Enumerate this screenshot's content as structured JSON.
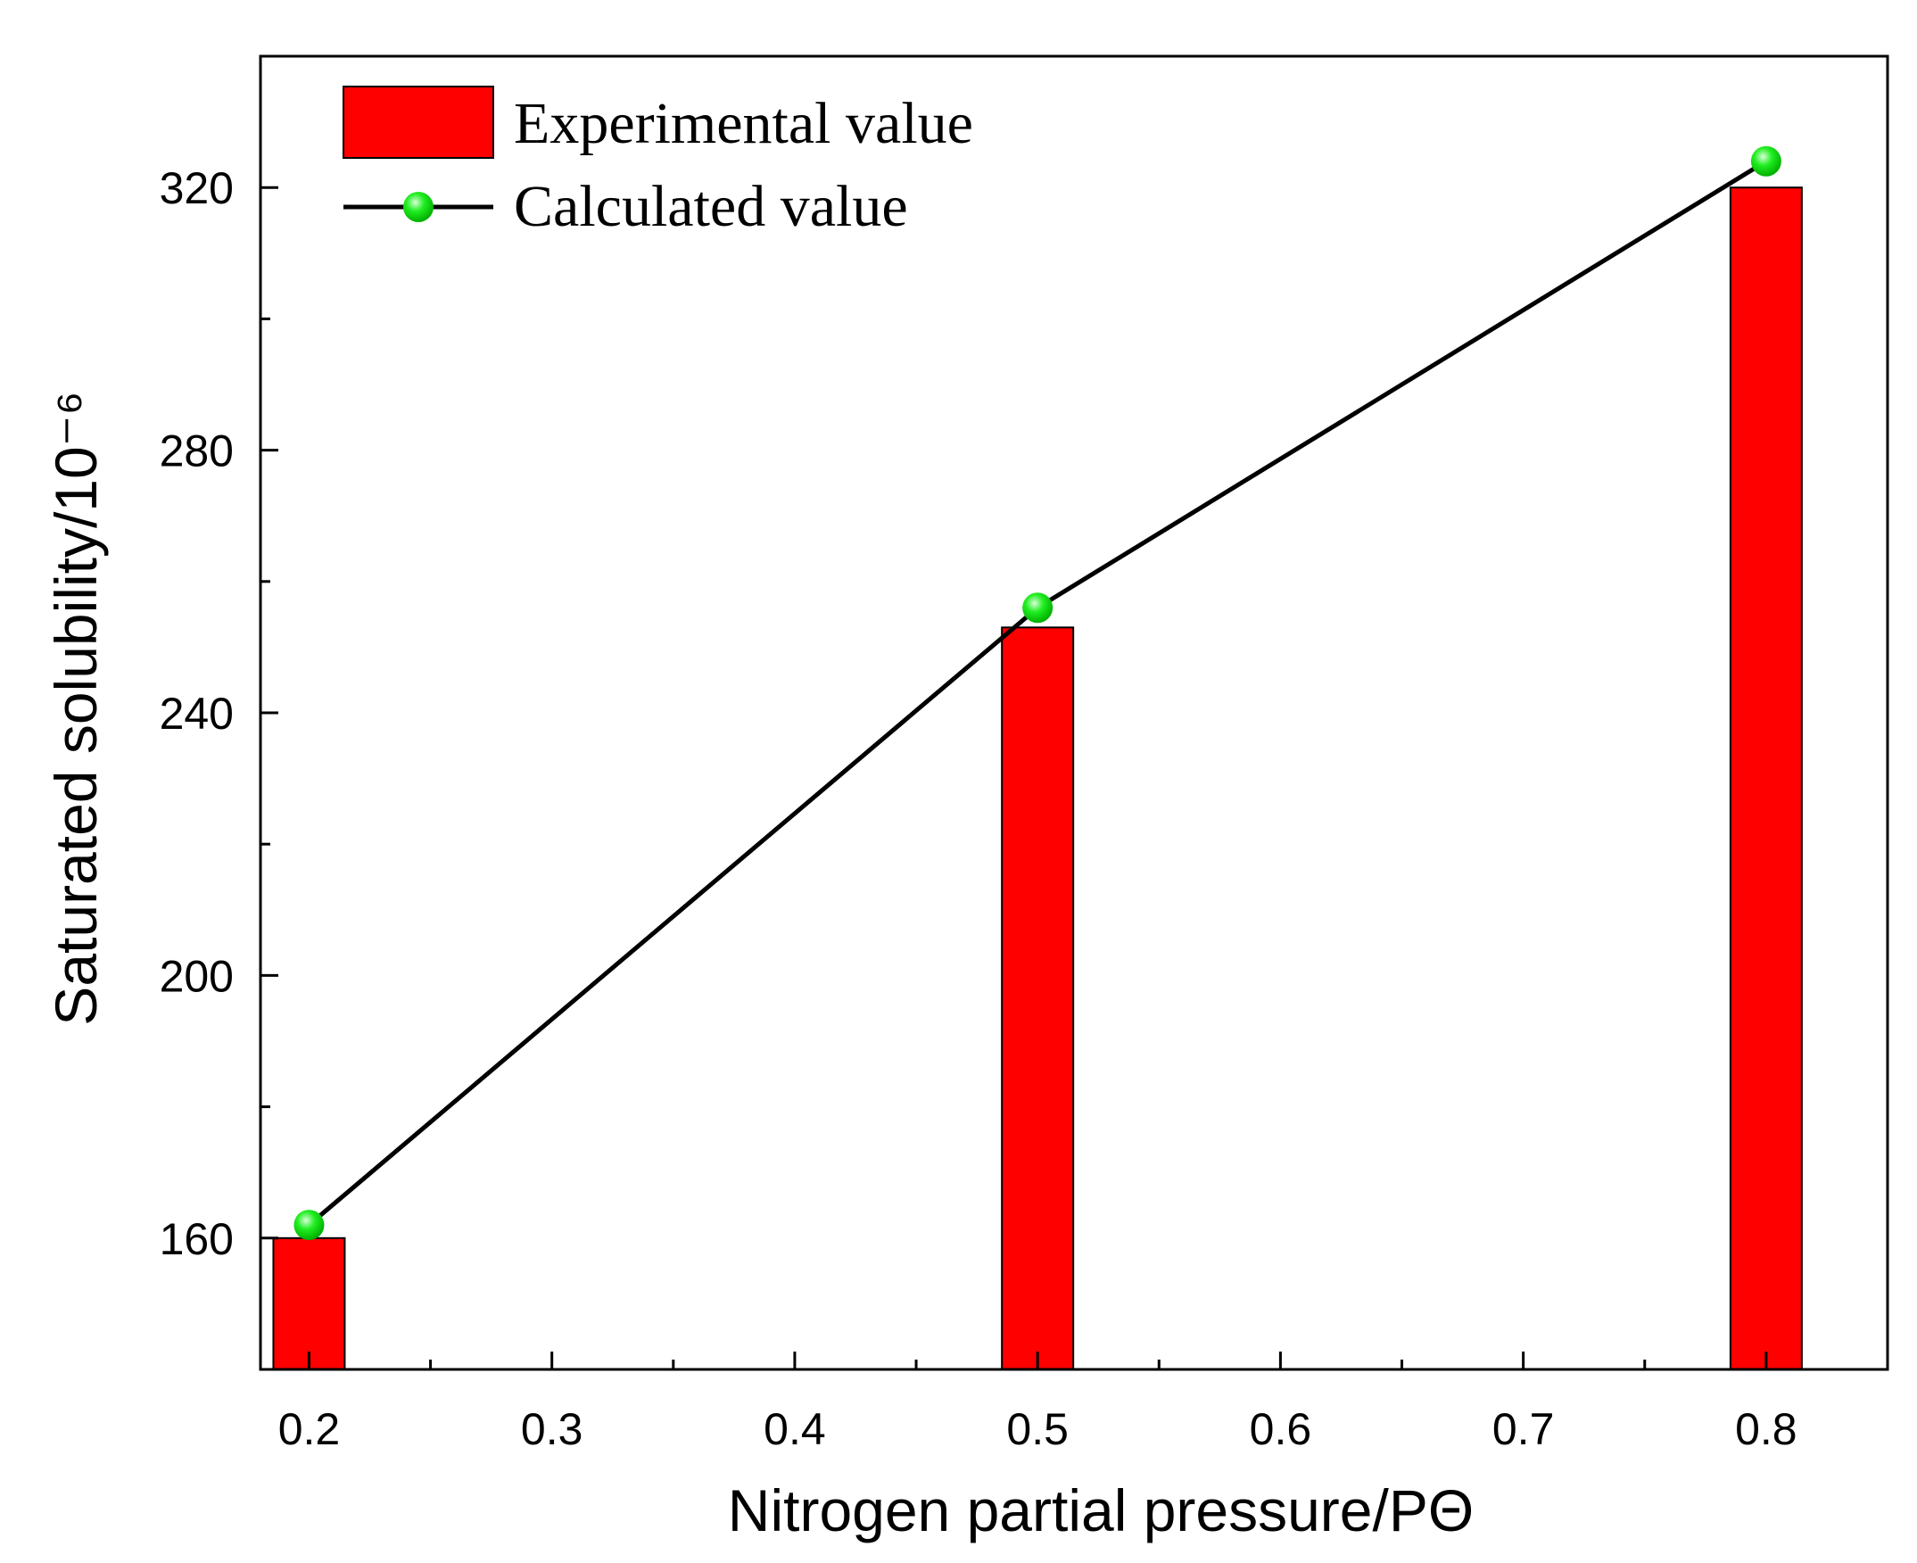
{
  "chart_data": {
    "type": "bar",
    "xlabel": "Nitrogen partial pressure/PΘ",
    "ylabel": "Saturated solubility/10⁻⁶",
    "xlim": [
      0.18,
      0.85
    ],
    "ylim": [
      140,
      340
    ],
    "x_ticks": [
      0.2,
      0.3,
      0.4,
      0.5,
      0.6,
      0.7,
      0.8
    ],
    "x_tick_labels": [
      "0.2",
      "0.3",
      "0.4",
      "0.5",
      "0.6",
      "0.7",
      "0.8"
    ],
    "y_ticks": [
      160,
      200,
      240,
      280,
      320
    ],
    "y_tick_labels": [
      "160",
      "200",
      "240",
      "280",
      "320"
    ],
    "grid": false,
    "legend_position": "top-left",
    "series": [
      {
        "name": "Experimental value",
        "kind": "bar",
        "color": "#ff0000",
        "x": [
          0.2,
          0.5,
          0.8
        ],
        "values": [
          160,
          253,
          320
        ]
      },
      {
        "name": "Calculated value",
        "kind": "line",
        "color": "#000000",
        "marker_color": "#00e000",
        "x": [
          0.2,
          0.5,
          0.8
        ],
        "values": [
          162,
          256,
          324
        ]
      }
    ]
  }
}
